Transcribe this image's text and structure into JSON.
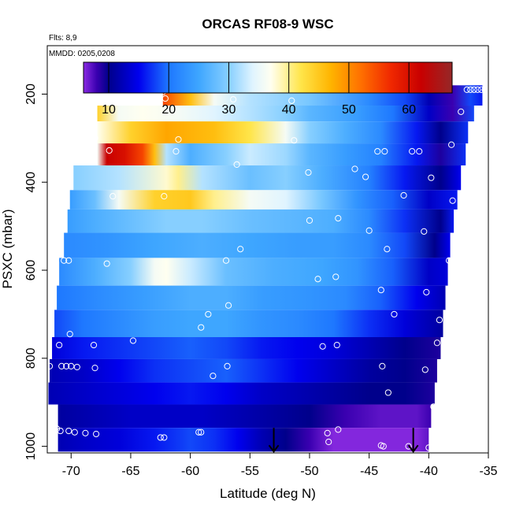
{
  "chart_data": {
    "type": "heatmap",
    "title": "ORCAS RF08-9 WSC",
    "flights_note": "Flts: 8,9",
    "date_note": "MMDD: 0205,0208",
    "xlabel": "Latitude (deg N)",
    "ylabel": "PSXC (mbar)",
    "xlim": [
      -72,
      -35
    ],
    "ylim": [
      1015,
      90
    ],
    "x_ticks": [
      -70,
      -65,
      -60,
      -55,
      -50,
      -45,
      -40,
      -35
    ],
    "y_ticks": [
      200,
      400,
      600,
      800,
      1000
    ],
    "colorbar": {
      "range": [
        5.8,
        67.2
      ],
      "ticks": [
        10,
        20,
        30,
        40,
        50,
        60
      ],
      "stops": [
        {
          "v": 5.8,
          "c": "#8a2be2"
        },
        {
          "v": 8,
          "c": "#3a00b0"
        },
        {
          "v": 10,
          "c": "#00008b"
        },
        {
          "v": 15,
          "c": "#0000ee"
        },
        {
          "v": 20,
          "c": "#1e78ff"
        },
        {
          "v": 25,
          "c": "#3ea6ff"
        },
        {
          "v": 30,
          "c": "#87cfff"
        },
        {
          "v": 34,
          "c": "#e0f4ff"
        },
        {
          "v": 37,
          "c": "#fffff0"
        },
        {
          "v": 42,
          "c": "#ffe54a"
        },
        {
          "v": 47,
          "c": "#ffb400"
        },
        {
          "v": 52,
          "c": "#ff7000"
        },
        {
          "v": 57,
          "c": "#f02800"
        },
        {
          "v": 62,
          "c": "#c80000"
        },
        {
          "v": 67.2,
          "c": "#962828"
        }
      ]
    },
    "layers": [
      {
        "p0": 180,
        "p1": 226,
        "x0": -62.3,
        "x1": -35.5,
        "stops": [
          [
            -62.3,
            55
          ],
          [
            -60,
            46
          ],
          [
            -58,
            36
          ],
          [
            -55,
            32
          ],
          [
            -50,
            29
          ],
          [
            -45,
            22
          ],
          [
            -42,
            18
          ],
          [
            -40,
            12
          ],
          [
            -38,
            8
          ],
          [
            -36.5,
            18
          ],
          [
            -35.5,
            16
          ]
        ]
      },
      {
        "p0": 226,
        "p1": 262,
        "x0": -67.8,
        "x1": -36.2,
        "stops": [
          [
            -67.8,
            44
          ],
          [
            -66,
            36
          ],
          [
            -64,
            37
          ],
          [
            -61,
            36
          ],
          [
            -58,
            34
          ],
          [
            -55,
            32
          ],
          [
            -52,
            30
          ],
          [
            -50,
            27
          ],
          [
            -46,
            24
          ],
          [
            -43,
            20
          ],
          [
            -40,
            13
          ],
          [
            -38,
            8
          ],
          [
            -36.2,
            18
          ]
        ]
      },
      {
        "p0": 262,
        "p1": 312,
        "x0": -67.8,
        "x1": -36.7,
        "stops": [
          [
            -67.8,
            37
          ],
          [
            -65,
            44
          ],
          [
            -62,
            48
          ],
          [
            -58,
            46
          ],
          [
            -55,
            42
          ],
          [
            -52,
            36
          ],
          [
            -50,
            30
          ],
          [
            -47,
            26
          ],
          [
            -44,
            22
          ],
          [
            -41,
            16
          ],
          [
            -39,
            10
          ],
          [
            -36.7,
            17
          ]
        ]
      },
      {
        "p0": 312,
        "p1": 362,
        "x0": -67.8,
        "x1": -36.9,
        "stops": [
          [
            -67.8,
            36
          ],
          [
            -67,
            62
          ],
          [
            -65.5,
            60
          ],
          [
            -64,
            55
          ],
          [
            -63,
            46
          ],
          [
            -62,
            32
          ],
          [
            -60,
            26
          ],
          [
            -57,
            30
          ],
          [
            -55,
            33
          ],
          [
            -52,
            31
          ],
          [
            -50,
            27
          ],
          [
            -47,
            24
          ],
          [
            -44,
            21
          ],
          [
            -41,
            16
          ],
          [
            -39,
            9
          ],
          [
            -36.9,
            17
          ]
        ]
      },
      {
        "p0": 362,
        "p1": 418,
        "x0": -69.8,
        "x1": -37.3,
        "stops": [
          [
            -69.8,
            30
          ],
          [
            -66,
            32
          ],
          [
            -62,
            38
          ],
          [
            -61,
            40
          ],
          [
            -59,
            32
          ],
          [
            -55,
            28
          ],
          [
            -52,
            30
          ],
          [
            -49,
            26
          ],
          [
            -45,
            21
          ],
          [
            -42,
            16
          ],
          [
            -39,
            10
          ],
          [
            -37.3,
            15
          ]
        ]
      },
      {
        "p0": 418,
        "p1": 462,
        "x0": -70.1,
        "x1": -37.6,
        "stops": [
          [
            -70.1,
            24
          ],
          [
            -68,
            28
          ],
          [
            -66,
            36
          ],
          [
            -63,
            44
          ],
          [
            -60,
            45
          ],
          [
            -58,
            40
          ],
          [
            -55,
            36
          ],
          [
            -52,
            34
          ],
          [
            -49,
            29
          ],
          [
            -46,
            23
          ],
          [
            -43,
            19
          ],
          [
            -40,
            13
          ],
          [
            -37.6,
            16
          ]
        ]
      },
      {
        "p0": 462,
        "p1": 515,
        "x0": -70.3,
        "x1": -37.9,
        "stops": [
          [
            -70.3,
            24
          ],
          [
            -68,
            26
          ],
          [
            -65,
            28
          ],
          [
            -62,
            30
          ],
          [
            -59,
            30
          ],
          [
            -55,
            28
          ],
          [
            -51,
            27
          ],
          [
            -48,
            26
          ],
          [
            -45,
            22
          ],
          [
            -42,
            17
          ],
          [
            -39,
            10
          ],
          [
            -37.9,
            16
          ]
        ]
      },
      {
        "p0": 515,
        "p1": 572,
        "x0": -70.6,
        "x1": -38.2,
        "stops": [
          [
            -70.6,
            22
          ],
          [
            -67,
            23
          ],
          [
            -63,
            25
          ],
          [
            -59,
            26
          ],
          [
            -55,
            25
          ],
          [
            -51,
            24
          ],
          [
            -48,
            24
          ],
          [
            -45,
            22
          ],
          [
            -42,
            18
          ],
          [
            -39.5,
            10
          ],
          [
            -38.2,
            15
          ]
        ]
      },
      {
        "p0": 572,
        "p1": 635,
        "x0": -71.0,
        "x1": -38.4,
        "stops": [
          [
            -71,
            22
          ],
          [
            -68,
            26
          ],
          [
            -65,
            30
          ],
          [
            -63,
            36
          ],
          [
            -62,
            37
          ],
          [
            -60,
            33
          ],
          [
            -57,
            28
          ],
          [
            -53,
            26
          ],
          [
            -49,
            25
          ],
          [
            -46,
            23
          ],
          [
            -43,
            19
          ],
          [
            -40,
            13
          ],
          [
            -38.4,
            14
          ]
        ]
      },
      {
        "p0": 635,
        "p1": 690,
        "x0": -71.2,
        "x1": -38.6,
        "stops": [
          [
            -71.2,
            20
          ],
          [
            -68,
            22
          ],
          [
            -64,
            24
          ],
          [
            -60,
            26
          ],
          [
            -57,
            26
          ],
          [
            -54,
            24
          ],
          [
            -50,
            23
          ],
          [
            -47,
            22
          ],
          [
            -44,
            19
          ],
          [
            -41,
            15
          ],
          [
            -38.6,
            12
          ]
        ]
      },
      {
        "p0": 690,
        "p1": 752,
        "x0": -71.4,
        "x1": -38.8,
        "stops": [
          [
            -71.4,
            18
          ],
          [
            -69,
            20
          ],
          [
            -66,
            22
          ],
          [
            -63,
            24
          ],
          [
            -60,
            25
          ],
          [
            -57,
            25
          ],
          [
            -54,
            23
          ],
          [
            -51,
            22
          ],
          [
            -48,
            20
          ],
          [
            -45,
            17
          ],
          [
            -42,
            14
          ],
          [
            -38.8,
            11
          ]
        ]
      },
      {
        "p0": 752,
        "p1": 802,
        "x0": -71.6,
        "x1": -39.0,
        "stops": [
          [
            -71.6,
            14
          ],
          [
            -69,
            16
          ],
          [
            -66,
            17
          ],
          [
            -63,
            18
          ],
          [
            -60,
            19
          ],
          [
            -57,
            18
          ],
          [
            -54,
            16
          ],
          [
            -51,
            15
          ],
          [
            -48,
            14
          ],
          [
            -45,
            12
          ],
          [
            -42,
            10
          ],
          [
            -39,
            9
          ]
        ]
      },
      {
        "p0": 802,
        "p1": 855,
        "x0": -71.8,
        "x1": -39.3,
        "stops": [
          [
            -71.8,
            12
          ],
          [
            -69,
            13
          ],
          [
            -66,
            15
          ],
          [
            -63,
            17
          ],
          [
            -60,
            18
          ],
          [
            -57,
            19
          ],
          [
            -54,
            17
          ],
          [
            -51,
            15
          ],
          [
            -48,
            13
          ],
          [
            -45,
            11
          ],
          [
            -42,
            10
          ],
          [
            -39.3,
            9
          ]
        ]
      },
      {
        "p0": 855,
        "p1": 905,
        "x0": -71.9,
        "x1": -39.5,
        "stops": [
          [
            -71.9,
            12
          ],
          [
            -69,
            13
          ],
          [
            -66,
            14
          ],
          [
            -63,
            15
          ],
          [
            -60,
            16
          ],
          [
            -57,
            15
          ],
          [
            -54,
            13
          ],
          [
            -51,
            12
          ],
          [
            -48,
            11
          ],
          [
            -45,
            10
          ],
          [
            -42,
            10
          ],
          [
            -39.5,
            9
          ]
        ]
      },
      {
        "p0": 905,
        "p1": 958,
        "x0": -71.1,
        "x1": -39.8,
        "stops": [
          [
            -71.1,
            11
          ],
          [
            -68,
            12
          ],
          [
            -65,
            13
          ],
          [
            -62,
            13
          ],
          [
            -59,
            13
          ],
          [
            -56,
            12
          ],
          [
            -53,
            11
          ],
          [
            -50,
            10
          ],
          [
            -47,
            8
          ],
          [
            -44,
            7
          ],
          [
            -41,
            7
          ],
          [
            -39.8,
            8
          ]
        ]
      },
      {
        "p0": 958,
        "p1": 1012,
        "x0": -71.1,
        "x1": -40.0,
        "stops": [
          [
            -71.1,
            12
          ],
          [
            -69,
            13
          ],
          [
            -66,
            14
          ],
          [
            -63,
            16
          ],
          [
            -60,
            18
          ],
          [
            -58,
            17
          ],
          [
            -56,
            15
          ],
          [
            -54,
            12
          ],
          [
            -52,
            10
          ],
          [
            -50,
            8
          ],
          [
            -48,
            6
          ],
          [
            -44,
            6
          ],
          [
            -41,
            6
          ],
          [
            -40,
            7
          ]
        ]
      }
    ],
    "sample_points": [
      [
        -62.3,
        195
      ],
      [
        -62.1,
        210
      ],
      [
        -56.4,
        212
      ],
      [
        -50.8,
        190
      ],
      [
        -51.5,
        215
      ],
      [
        -36.8,
        190
      ],
      [
        -36.5,
        190
      ],
      [
        -36.2,
        190
      ],
      [
        -35.9,
        190
      ],
      [
        -35.6,
        190
      ],
      [
        -35.3,
        190
      ],
      [
        -35.0,
        190
      ],
      [
        -34.9,
        190
      ],
      [
        -37.3,
        240
      ],
      [
        -68.0,
        300
      ],
      [
        -61.0,
        303
      ],
      [
        -51.3,
        305
      ],
      [
        -38.1,
        315
      ],
      [
        -66.8,
        328
      ],
      [
        -61.2,
        330
      ],
      [
        -44.3,
        330
      ],
      [
        -43.7,
        330
      ],
      [
        -41.4,
        330
      ],
      [
        -40.8,
        330
      ],
      [
        -56.1,
        360
      ],
      [
        -46.2,
        370
      ],
      [
        -50.1,
        378
      ],
      [
        -45.3,
        388
      ],
      [
        -39.8,
        390
      ],
      [
        -66.5,
        432
      ],
      [
        -62.2,
        432
      ],
      [
        -42.1,
        430
      ],
      [
        -38.0,
        442
      ],
      [
        -47.6,
        482
      ],
      [
        -50.0,
        487
      ],
      [
        -45.0,
        510
      ],
      [
        -40.4,
        512
      ],
      [
        -55.8,
        552
      ],
      [
        -43.5,
        552
      ],
      [
        -70.6,
        578
      ],
      [
        -70.2,
        578
      ],
      [
        -67.0,
        585
      ],
      [
        -57.0,
        578
      ],
      [
        -38.3,
        578
      ],
      [
        -47.8,
        615
      ],
      [
        -49.3,
        620
      ],
      [
        -44.0,
        645
      ],
      [
        -40.2,
        650
      ],
      [
        -56.8,
        680
      ],
      [
        -58.5,
        700
      ],
      [
        -42.9,
        700
      ],
      [
        -39.1,
        713
      ],
      [
        -59.1,
        730
      ],
      [
        -70.1,
        745
      ],
      [
        -71.0,
        770
      ],
      [
        -68.1,
        770
      ],
      [
        -64.8,
        760
      ],
      [
        -48.9,
        773
      ],
      [
        -47.7,
        770
      ],
      [
        -39.3,
        765
      ],
      [
        -71.8,
        818
      ],
      [
        -70.8,
        818
      ],
      [
        -70.4,
        818
      ],
      [
        -70.0,
        818
      ],
      [
        -69.5,
        820
      ],
      [
        -68.0,
        822
      ],
      [
        -56.9,
        818
      ],
      [
        -58.1,
        840
      ],
      [
        -43.9,
        818
      ],
      [
        -40.3,
        826
      ],
      [
        -43.4,
        878
      ],
      [
        -39.6,
        910
      ],
      [
        -71.2,
        960
      ],
      [
        -70.9,
        965
      ],
      [
        -70.2,
        965
      ],
      [
        -69.7,
        968
      ],
      [
        -68.8,
        970
      ],
      [
        -67.9,
        972
      ],
      [
        -62.5,
        980
      ],
      [
        -62.2,
        980
      ],
      [
        -59.3,
        968
      ],
      [
        -59.1,
        968
      ],
      [
        -48.5,
        970
      ],
      [
        -48.4,
        990
      ],
      [
        -47.6,
        962
      ],
      [
        -44.0,
        998
      ],
      [
        -43.8,
        1000
      ],
      [
        -41.7,
        1000
      ],
      [
        -40.0,
        1003
      ]
    ],
    "arrows": [
      {
        "x": -53.0,
        "p_top": 958,
        "p_bottom": 1012
      },
      {
        "x": -41.3,
        "p_top": 958,
        "p_bottom": 1012
      }
    ]
  }
}
